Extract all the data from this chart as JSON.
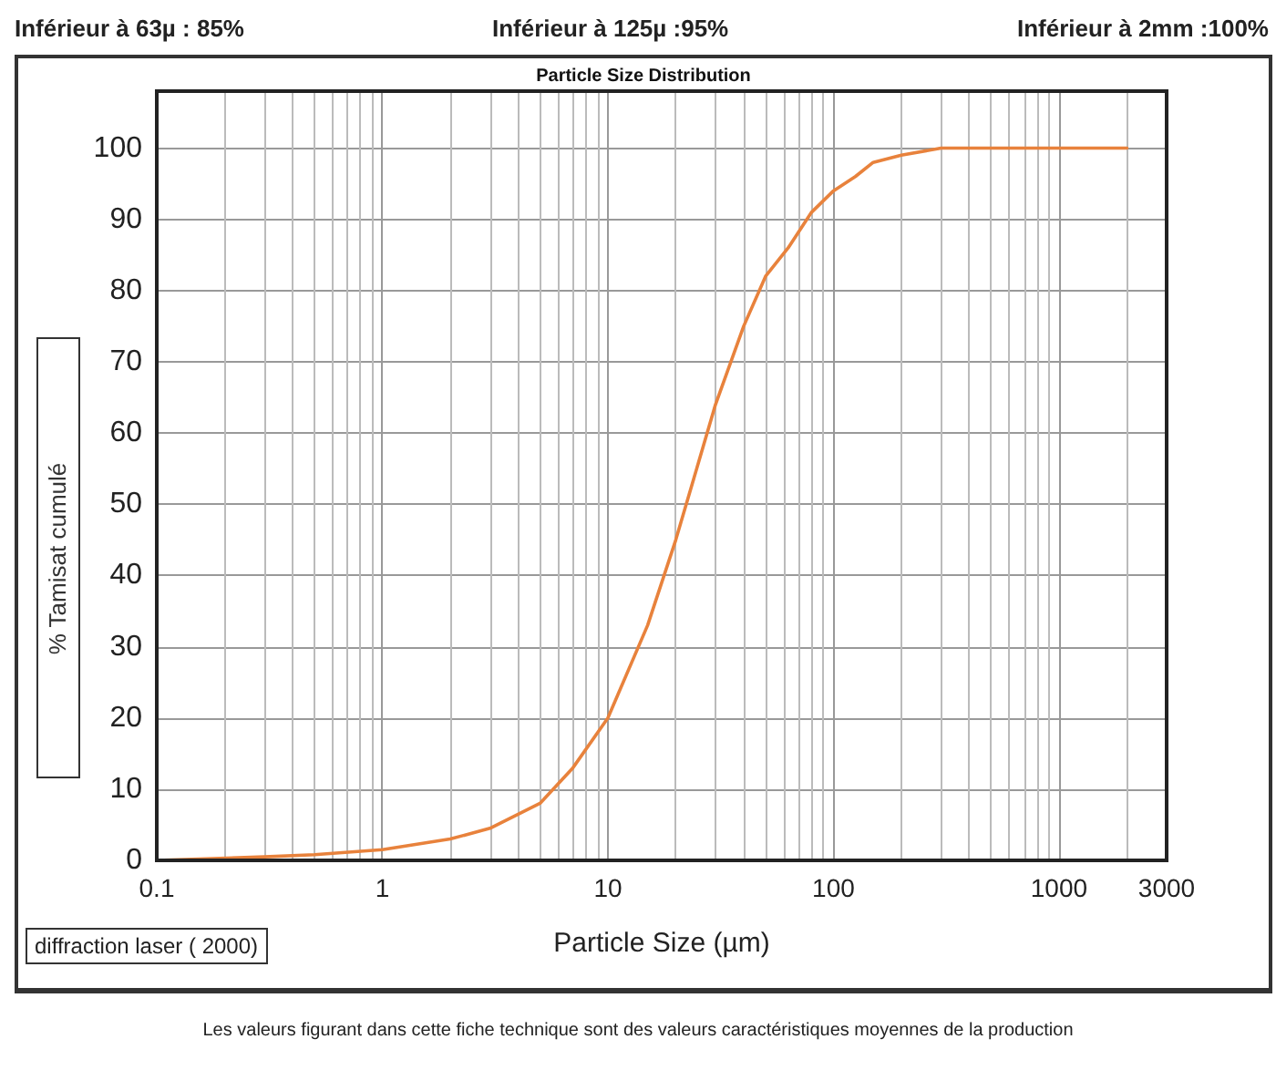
{
  "chart_data": {
    "type": "line",
    "title": "Particle Size Distribution",
    "xlabel": "Particle Size (µm)",
    "ylabel": "% Tamisat cumulé",
    "annotations": [
      "Inférieur à 63µ : 85%",
      "Inférieur à 125µ :95%",
      "Inférieur à 2mm :100%",
      "diffraction laser ( 2000)",
      "Les valeurs figurant dans cette fiche technique sont des valeurs caractéristiques moyennes de la production"
    ],
    "series": [
      {
        "color": "#e8823c",
        "x": [
          0.1,
          0.3,
          0.5,
          1,
          2,
          3,
          5,
          7,
          10,
          15,
          20,
          30,
          40,
          50,
          63,
          80,
          100,
          125,
          150,
          200,
          300,
          2000
        ],
        "values": [
          0,
          0.5,
          0.8,
          1.5,
          3,
          4.5,
          8,
          13,
          20,
          33,
          45,
          64,
          75,
          82,
          86,
          91,
          94,
          96,
          98,
          99,
          100,
          100
        ]
      }
    ],
    "xlim": [
      0.1,
      3000
    ],
    "xticks": [
      0.1,
      1,
      10,
      100,
      1000,
      3000
    ],
    "ylim": [
      0,
      108
    ],
    "yticks": [
      0,
      10,
      20,
      30,
      40,
      50,
      60,
      70,
      80,
      90,
      100
    ],
    "log": "x",
    "grid": true,
    "marker": "none",
    "line_style": "solid"
  }
}
